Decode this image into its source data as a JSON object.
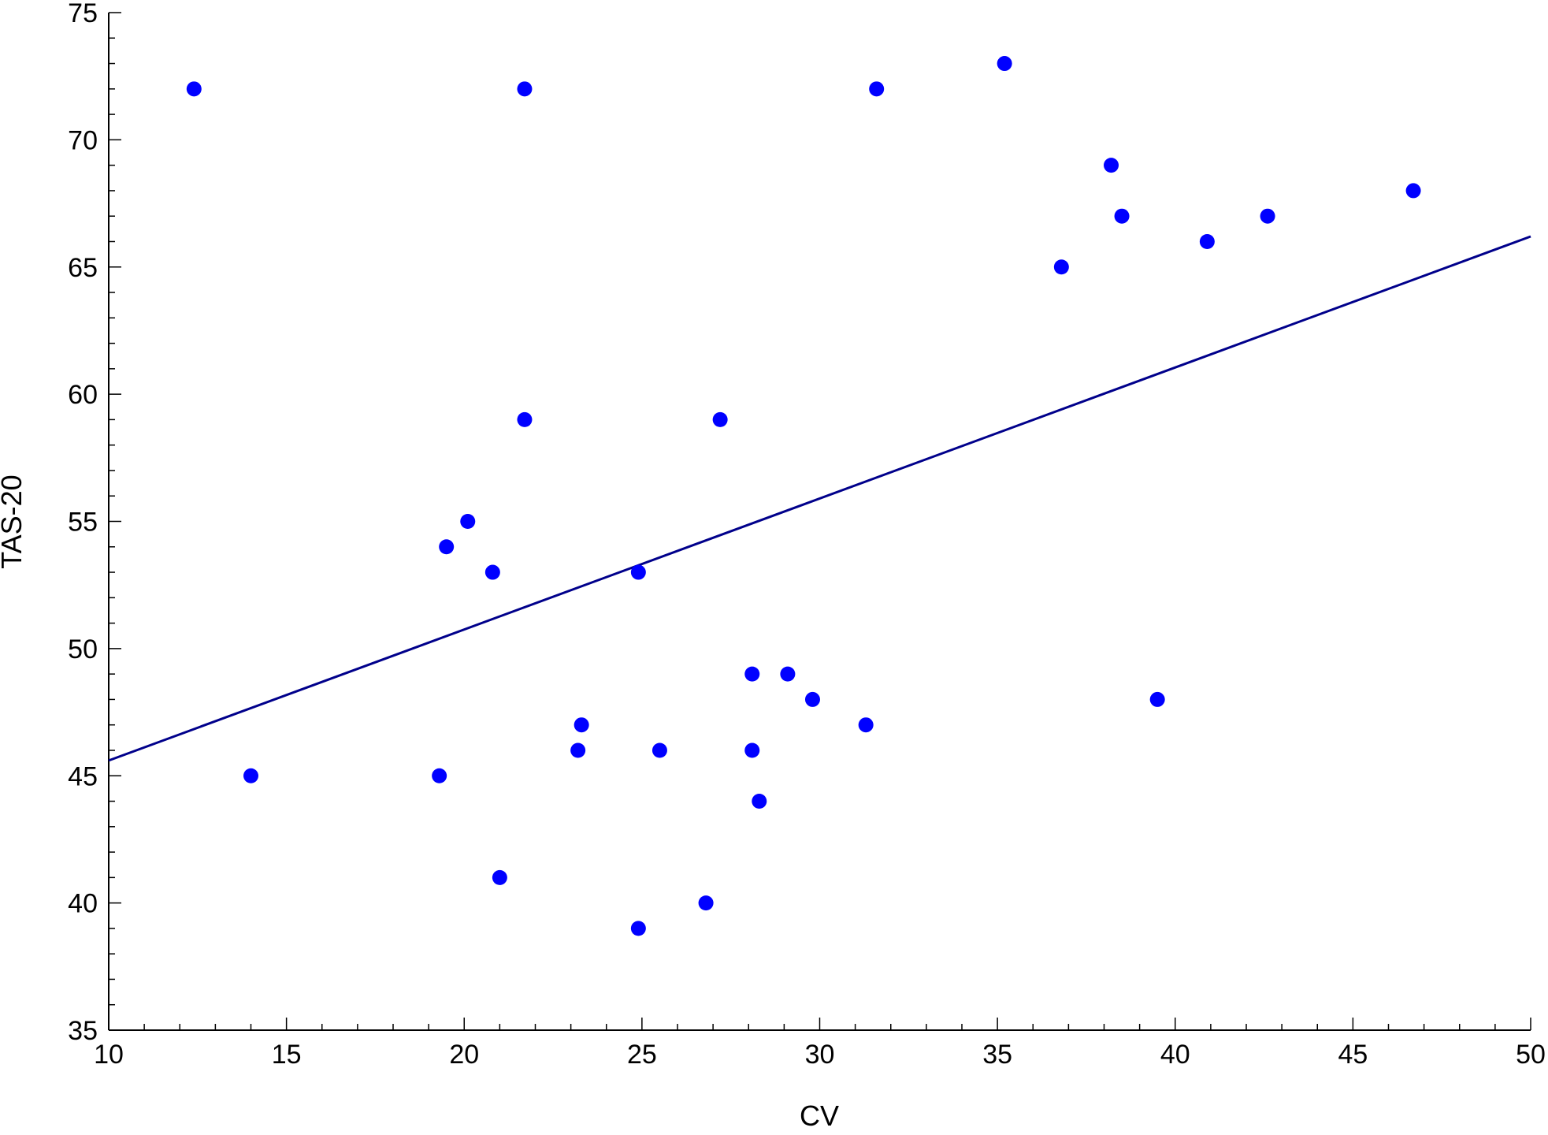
{
  "chart_data": {
    "type": "scatter",
    "title": "",
    "xlabel": "CV",
    "ylabel": "TAS-20",
    "xlim": [
      10,
      50
    ],
    "ylim": [
      35,
      75
    ],
    "xticks": [
      10,
      15,
      20,
      25,
      30,
      35,
      40,
      45,
      50
    ],
    "yticks": [
      35,
      40,
      45,
      50,
      55,
      60,
      65,
      70,
      75
    ],
    "grid": false,
    "legend": "none",
    "colors": {
      "points": "#0000ff",
      "fit_line": "#00008b",
      "axis": "#000000"
    },
    "points": [
      {
        "x": 12.4,
        "y": 72
      },
      {
        "x": 14.0,
        "y": 45
      },
      {
        "x": 19.3,
        "y": 45
      },
      {
        "x": 19.5,
        "y": 54
      },
      {
        "x": 20.1,
        "y": 55
      },
      {
        "x": 20.8,
        "y": 53
      },
      {
        "x": 21.0,
        "y": 41
      },
      {
        "x": 21.7,
        "y": 72
      },
      {
        "x": 21.7,
        "y": 59
      },
      {
        "x": 23.2,
        "y": 46
      },
      {
        "x": 23.3,
        "y": 47
      },
      {
        "x": 24.9,
        "y": 53
      },
      {
        "x": 24.9,
        "y": 39
      },
      {
        "x": 25.5,
        "y": 46
      },
      {
        "x": 26.8,
        "y": 40
      },
      {
        "x": 27.2,
        "y": 59
      },
      {
        "x": 28.1,
        "y": 49
      },
      {
        "x": 28.1,
        "y": 46
      },
      {
        "x": 28.3,
        "y": 44
      },
      {
        "x": 29.1,
        "y": 49
      },
      {
        "x": 29.8,
        "y": 48
      },
      {
        "x": 31.3,
        "y": 47
      },
      {
        "x": 31.6,
        "y": 72
      },
      {
        "x": 35.2,
        "y": 73
      },
      {
        "x": 36.8,
        "y": 65
      },
      {
        "x": 38.2,
        "y": 69
      },
      {
        "x": 38.5,
        "y": 67
      },
      {
        "x": 39.5,
        "y": 48
      },
      {
        "x": 40.9,
        "y": 66
      },
      {
        "x": 42.6,
        "y": 67
      },
      {
        "x": 46.7,
        "y": 68
      }
    ],
    "fit_line": {
      "x": [
        10,
        50
      ],
      "y": [
        45.6,
        66.2
      ]
    }
  }
}
